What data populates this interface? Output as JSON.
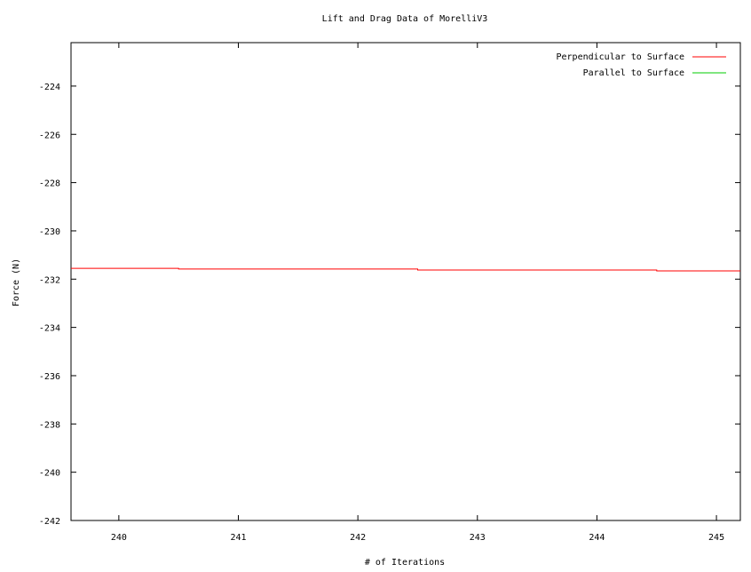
{
  "chart_data": {
    "type": "line",
    "title": "Lift and Drag Data of MorelliV3",
    "xlabel": "# of Iterations",
    "ylabel": "Force (N)",
    "xlim": [
      239.6,
      245.2
    ],
    "ylim": [
      -242,
      -222.2
    ],
    "x_ticks": [
      240,
      241,
      242,
      243,
      244,
      245
    ],
    "y_ticks": [
      -224,
      -226,
      -228,
      -230,
      -232,
      -234,
      -236,
      -238,
      -240,
      -242
    ],
    "x_tick_labels": [
      "240",
      "241",
      "242",
      "243",
      "244",
      "245"
    ],
    "y_tick_labels": [
      "-224",
      "-226",
      "-228",
      "-230",
      "-232",
      "-234",
      "-236",
      "-238",
      "-240",
      "-242"
    ],
    "legend_position": "top-right",
    "series": [
      {
        "name": "Perpendicular to Surface",
        "color": "#ff0000",
        "step": true,
        "x": [
          239.6,
          240.5,
          242.5,
          244.5
        ],
        "y": [
          -231.55,
          -231.58,
          -231.62,
          -231.66
        ],
        "x_end": 245.2
      },
      {
        "name": "Parallel to Surface",
        "color": "#00cc00",
        "step": true,
        "x": [],
        "y": []
      }
    ]
  }
}
